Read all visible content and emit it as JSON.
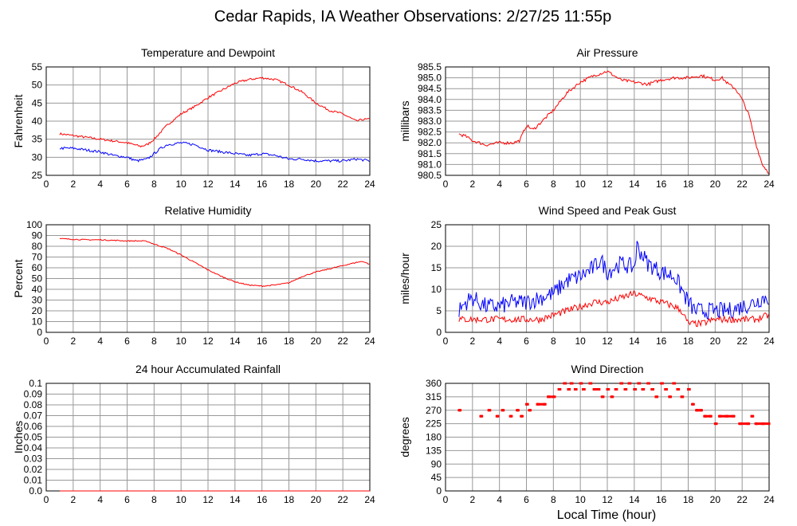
{
  "page": {
    "title": "Cedar Rapids, IA Weather Observations: 2/27/25 11:55p",
    "xaxis_label": "Local Time (hour)"
  },
  "colors": {
    "red": "#ff0000",
    "blue": "#0000ff",
    "grid": "#999999",
    "frame": "#000000"
  },
  "chart_data": [
    {
      "id": "temp",
      "type": "line",
      "title": "Temperature and Dewpoint",
      "ylabel": "Fahrenheit",
      "xlabel": "",
      "xlim": [
        0,
        24
      ],
      "ylim": [
        25,
        55
      ],
      "yticks": [
        "25",
        "30",
        "35",
        "40",
        "45",
        "50",
        "55"
      ],
      "xticks": [
        "0",
        "2",
        "4",
        "6",
        "8",
        "10",
        "12",
        "14",
        "16",
        "18",
        "20",
        "22",
        "24"
      ],
      "series": [
        {
          "color": "#ff0000",
          "noise": 0.3,
          "x": [
            1,
            2,
            3,
            4,
            5,
            6,
            6.5,
            7,
            7.5,
            8,
            9,
            10,
            11,
            12,
            13,
            14,
            15,
            16,
            17,
            18,
            19,
            20,
            21,
            22,
            23,
            23.5,
            24
          ],
          "y": [
            36.5,
            36,
            35.5,
            35,
            34.5,
            34,
            33.5,
            33,
            33.5,
            35,
            39,
            42,
            44,
            46.5,
            48.5,
            50.5,
            51.5,
            52,
            51.5,
            50,
            48,
            45,
            43,
            42,
            40,
            40.5,
            40.5
          ]
        },
        {
          "color": "#0000ff",
          "noise": 0.35,
          "x": [
            1,
            2,
            3,
            4,
            5,
            6,
            6.7,
            7.5,
            8,
            8.5,
            9,
            10,
            11,
            12,
            13,
            14,
            15,
            16,
            17,
            18,
            19,
            20,
            21,
            22,
            23,
            24
          ],
          "y": [
            32.5,
            32.5,
            32,
            31.5,
            30.5,
            30,
            29,
            29.5,
            31,
            32.5,
            33.5,
            34,
            33.5,
            32,
            31.5,
            31,
            30.5,
            31,
            30.5,
            29.5,
            29.5,
            29,
            29,
            29,
            29.5,
            29
          ]
        }
      ]
    },
    {
      "id": "pressure",
      "type": "line",
      "title": "Air Pressure",
      "ylabel": "millibars",
      "xlabel": "",
      "xlim": [
        0,
        24
      ],
      "ylim": [
        980.5,
        985.5
      ],
      "yticks": [
        "980.5",
        "981.0",
        "981.5",
        "982.0",
        "982.5",
        "983.0",
        "983.5",
        "984.0",
        "984.5",
        "985.0",
        "985.5"
      ],
      "xticks": [
        "0",
        "2",
        "4",
        "6",
        "8",
        "10",
        "12",
        "14",
        "16",
        "18",
        "20",
        "22",
        "24"
      ],
      "series": [
        {
          "color": "#ff0000",
          "noise": 0.07,
          "x": [
            1,
            1.5,
            2,
            3,
            4,
            5,
            5.5,
            6,
            6.5,
            7,
            8,
            9,
            10,
            11,
            12,
            12.5,
            13,
            14,
            15,
            16,
            17,
            18,
            19,
            20,
            20.5,
            21,
            21.5,
            22,
            22.5,
            23,
            23.5,
            24
          ],
          "y": [
            982.4,
            982.3,
            982.1,
            981.9,
            982.0,
            982.0,
            982.1,
            982.8,
            982.6,
            982.9,
            983.5,
            984.3,
            984.8,
            985.1,
            985.3,
            985.1,
            984.9,
            984.8,
            984.7,
            984.9,
            985.0,
            985.0,
            985.1,
            984.9,
            985.0,
            984.7,
            984.5,
            984.0,
            983.3,
            982.0,
            981.0,
            980.6
          ]
        }
      ]
    },
    {
      "id": "humidity",
      "type": "line",
      "title": "Relative Humidity",
      "ylabel": "Percent",
      "xlabel": "",
      "xlim": [
        0,
        24
      ],
      "ylim": [
        0,
        100
      ],
      "yticks": [
        "0",
        "10",
        "20",
        "30",
        "40",
        "50",
        "60",
        "70",
        "80",
        "90",
        "100"
      ],
      "xticks": [
        "0",
        "2",
        "4",
        "6",
        "8",
        "10",
        "12",
        "14",
        "16",
        "18",
        "20",
        "22",
        "24"
      ],
      "series": [
        {
          "color": "#ff0000",
          "noise": 0.5,
          "x": [
            1,
            2,
            3,
            4,
            5,
            6,
            7,
            7.5,
            8,
            9,
            10,
            11,
            12,
            13,
            14,
            15,
            16,
            17,
            18,
            19,
            20,
            21,
            22,
            23,
            23.5,
            24
          ],
          "y": [
            87,
            86.5,
            86,
            86,
            85.5,
            85,
            85,
            84.5,
            82,
            78,
            72,
            65,
            58,
            52,
            47,
            44,
            43,
            44,
            46,
            52,
            56,
            59,
            62,
            65,
            66,
            63
          ]
        }
      ]
    },
    {
      "id": "wind",
      "type": "line",
      "title": "Wind Speed and Peak Gust",
      "ylabel": "miles/hour",
      "xlabel": "",
      "xlim": [
        0,
        24
      ],
      "ylim": [
        0,
        25
      ],
      "yticks": [
        "0",
        "5",
        "10",
        "15",
        "20",
        "25"
      ],
      "xticks": [
        "0",
        "2",
        "4",
        "6",
        "8",
        "10",
        "12",
        "14",
        "16",
        "18",
        "20",
        "22",
        "24"
      ],
      "series": [
        {
          "color": "#0000ff",
          "noise": 2.0,
          "x": [
            1,
            1.5,
            2,
            3,
            4,
            5,
            6,
            7,
            8,
            9,
            10,
            11,
            11.5,
            12,
            13,
            14,
            14.2,
            15,
            16,
            17,
            17.5,
            18,
            18.5,
            19,
            20,
            21,
            22,
            23,
            23.5,
            24
          ],
          "y": [
            5,
            7,
            8,
            6,
            6,
            7,
            7,
            8,
            9,
            12,
            13,
            15,
            17,
            14,
            16,
            15,
            20,
            16,
            14,
            13,
            10,
            7,
            5,
            5,
            5,
            5,
            6,
            7,
            8,
            8
          ]
        },
        {
          "color": "#ff0000",
          "noise": 0.8,
          "x": [
            1,
            2,
            3,
            4,
            5,
            6,
            7,
            8,
            9,
            10,
            11,
            12,
            13,
            14,
            15,
            16,
            17,
            17.5,
            18,
            19,
            20,
            21,
            22,
            23,
            24
          ],
          "y": [
            3,
            3,
            3,
            3,
            3,
            3,
            3,
            4,
            5,
            6,
            7,
            7,
            8,
            9,
            8,
            7,
            6,
            5,
            2,
            2,
            3,
            3,
            3,
            3,
            4
          ]
        }
      ]
    },
    {
      "id": "rain",
      "type": "line",
      "title": "24 hour Accumulated Rainfall",
      "ylabel": "Inches",
      "xlabel": "",
      "xlim": [
        0,
        24
      ],
      "ylim": [
        0,
        0.1
      ],
      "yticks": [
        "0.0",
        "0.01",
        "0.02",
        "0.03",
        "0.04",
        "0.05",
        "0.06",
        "0.07",
        "0.08",
        "0.09",
        "0.1"
      ],
      "xticks": [
        "0",
        "2",
        "4",
        "6",
        "8",
        "10",
        "12",
        "14",
        "16",
        "18",
        "20",
        "22",
        "24"
      ],
      "series": [
        {
          "color": "#ff0000",
          "noise": 0,
          "x": [
            1,
            24
          ],
          "y": [
            0,
            0
          ]
        }
      ]
    },
    {
      "id": "winddir",
      "type": "scatter",
      "title": "Wind Direction",
      "ylabel": "degrees",
      "xlabel": "Local Time (hour)",
      "xlim": [
        0,
        24
      ],
      "ylim": [
        0,
        360
      ],
      "yticks": [
        "0",
        "45",
        "90",
        "135",
        "180",
        "225",
        "270",
        "315",
        "360"
      ],
      "xticks": [
        "0",
        "2",
        "4",
        "6",
        "8",
        "10",
        "12",
        "14",
        "16",
        "18",
        "20",
        "22",
        "24"
      ],
      "series": [
        {
          "color": "#ff0000",
          "points": [
            [
              1.0,
              270
            ],
            [
              2.6,
              250
            ],
            [
              3.2,
              270
            ],
            [
              3.8,
              250
            ],
            [
              4.2,
              270
            ],
            [
              4.8,
              250
            ],
            [
              5.3,
              270
            ],
            [
              5.6,
              250
            ],
            [
              6.0,
              290
            ],
            [
              6.2,
              270
            ],
            [
              6.8,
              290
            ],
            [
              7.3,
              290
            ],
            [
              7.6,
              315
            ],
            [
              8.0,
              315
            ],
            [
              8.4,
              340
            ],
            [
              8.8,
              360
            ],
            [
              9.1,
              340
            ],
            [
              9.3,
              360
            ],
            [
              9.6,
              340
            ],
            [
              10.0,
              360
            ],
            [
              10.2,
              340
            ],
            [
              10.7,
              360
            ],
            [
              11.0,
              340
            ],
            [
              11.3,
              340
            ],
            [
              11.6,
              315
            ],
            [
              12.0,
              340
            ],
            [
              12.3,
              315
            ],
            [
              12.6,
              340
            ],
            [
              13.0,
              360
            ],
            [
              13.3,
              340
            ],
            [
              13.6,
              360
            ],
            [
              14.0,
              340
            ],
            [
              14.3,
              360
            ],
            [
              14.6,
              340
            ],
            [
              15.0,
              360
            ],
            [
              15.3,
              340
            ],
            [
              15.6,
              315
            ],
            [
              16.0,
              360
            ],
            [
              16.3,
              340
            ],
            [
              16.6,
              315
            ],
            [
              16.9,
              360
            ],
            [
              17.2,
              340
            ],
            [
              17.5,
              315
            ],
            [
              18.0,
              340
            ],
            [
              18.3,
              290
            ],
            [
              18.6,
              270
            ],
            [
              18.9,
              270
            ],
            [
              19.2,
              250
            ],
            [
              19.6,
              250
            ],
            [
              20.0,
              225
            ],
            [
              20.3,
              250
            ],
            [
              20.8,
              250
            ],
            [
              21.3,
              250
            ],
            [
              21.8,
              225
            ],
            [
              22.4,
              225
            ],
            [
              22.7,
              250
            ],
            [
              23.0,
              225
            ],
            [
              23.5,
              225
            ],
            [
              24.0,
              225
            ]
          ]
        }
      ]
    }
  ]
}
